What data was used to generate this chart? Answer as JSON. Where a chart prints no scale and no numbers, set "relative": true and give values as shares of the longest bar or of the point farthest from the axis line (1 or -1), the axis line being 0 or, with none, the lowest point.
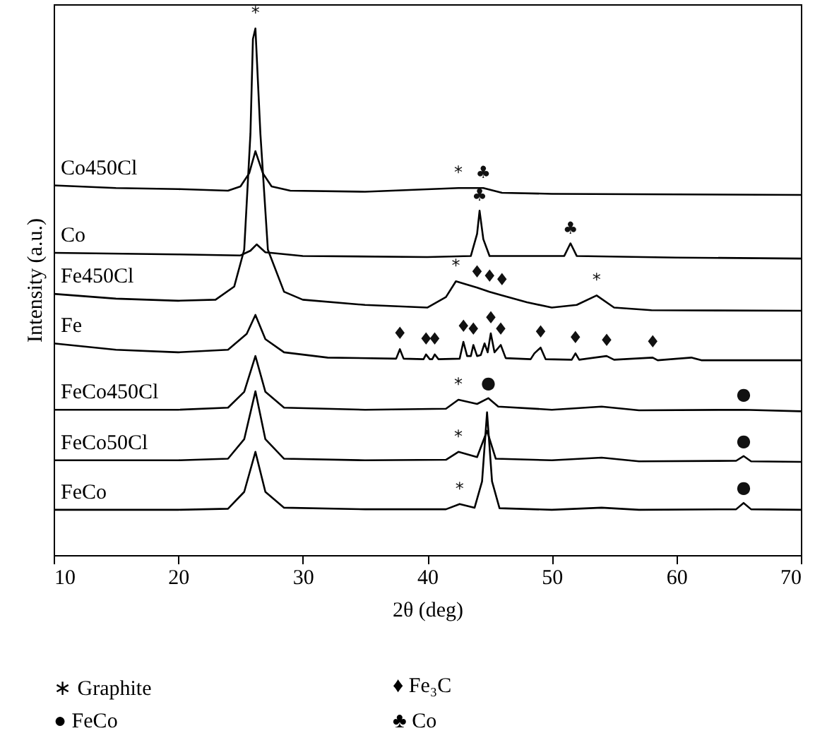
{
  "chart_data": {
    "type": "line",
    "relative": true,
    "xlabel": "2θ (deg)",
    "ylabel": "Intensity (a.u.)",
    "xlim": [
      10,
      70
    ],
    "xticks": [
      10,
      20,
      30,
      40,
      50,
      60,
      70
    ],
    "marker": "none",
    "series": [
      {
        "name": "Co450Cl",
        "color": "#000000",
        "x": [
          10,
          15,
          20,
          24,
          25,
          25.7,
          26.2,
          26.8,
          27.5,
          29,
          35,
          42.5,
          44.5,
          46,
          50,
          60,
          70
        ],
        "values": [
          0.702,
          0.697,
          0.695,
          0.692,
          0.7,
          0.725,
          0.767,
          0.725,
          0.7,
          0.692,
          0.69,
          0.697,
          0.697,
          0.688,
          0.686,
          0.685,
          0.684
        ]
      },
      {
        "name": "Co",
        "color": "#000000",
        "x": [
          10,
          20,
          25,
          25.8,
          26.3,
          27,
          30,
          40,
          43.5,
          44,
          44.2,
          44.5,
          45,
          51,
          51.5,
          52,
          60,
          70
        ],
        "values": [
          0.574,
          0.571,
          0.569,
          0.578,
          0.59,
          0.575,
          0.568,
          0.566,
          0.568,
          0.61,
          0.654,
          0.6,
          0.568,
          0.568,
          0.592,
          0.568,
          0.565,
          0.563
        ]
      },
      {
        "name": "Fe450Cl",
        "color": "#000000",
        "x": [
          10,
          15,
          20,
          23,
          24.5,
          25.3,
          25.8,
          26,
          26.2,
          26.6,
          27.2,
          28.5,
          30,
          35,
          40,
          41.5,
          42.3,
          43,
          44,
          45,
          46,
          48,
          50,
          52,
          53.6,
          55,
          58,
          70
        ],
        "values": [
          0.496,
          0.487,
          0.483,
          0.485,
          0.51,
          0.58,
          0.8,
          0.98,
          1,
          0.8,
          0.58,
          0.5,
          0.485,
          0.475,
          0.47,
          0.49,
          0.52,
          0.515,
          0.508,
          0.5,
          0.493,
          0.48,
          0.47,
          0.475,
          0.493,
          0.47,
          0.465,
          0.464
        ]
      },
      {
        "name": "Fe",
        "color": "#000000",
        "x": [
          10,
          15,
          20,
          24,
          25.5,
          26.2,
          27,
          28.5,
          32,
          37.5,
          37.8,
          38.1,
          39.7,
          39.9,
          40.2,
          40.4,
          40.6,
          40.9,
          42.6,
          42.9,
          43.2,
          43.5,
          43.7,
          44,
          44.3,
          44.6,
          44.85,
          45.1,
          45.4,
          45.9,
          46.3,
          48.3,
          48.6,
          49.1,
          49.5,
          51.6,
          51.9,
          52.2,
          54.4,
          55,
          58.1,
          58.5,
          61.2,
          62,
          70
        ],
        "values": [
          0.402,
          0.39,
          0.385,
          0.39,
          0.42,
          0.456,
          0.41,
          0.385,
          0.375,
          0.373,
          0.391,
          0.373,
          0.372,
          0.381,
          0.372,
          0.372,
          0.381,
          0.372,
          0.373,
          0.405,
          0.378,
          0.378,
          0.399,
          0.378,
          0.38,
          0.402,
          0.385,
          0.421,
          0.385,
          0.399,
          0.374,
          0.372,
          0.383,
          0.394,
          0.372,
          0.371,
          0.383,
          0.371,
          0.378,
          0.371,
          0.375,
          0.37,
          0.375,
          0.37,
          0.37
        ]
      },
      {
        "name": "FeCo450Cl",
        "color": "#000000",
        "x": [
          10,
          20,
          24,
          25.3,
          26.2,
          27,
          28.5,
          35,
          41.5,
          42.5,
          44,
          44.9,
          45.7,
          50,
          54,
          57,
          65.4,
          70
        ],
        "values": [
          0.276,
          0.276,
          0.28,
          0.31,
          0.378,
          0.31,
          0.28,
          0.276,
          0.278,
          0.295,
          0.287,
          0.298,
          0.282,
          0.276,
          0.282,
          0.275,
          0.276,
          0.273
        ]
      },
      {
        "name": "FeCo50Cl",
        "color": "#000000",
        "x": [
          10,
          20,
          24,
          25.3,
          26.2,
          27,
          28.5,
          35,
          41.5,
          42.5,
          44,
          44.8,
          45.5,
          50,
          54,
          57,
          64.8,
          65.4,
          66,
          70
        ],
        "values": [
          0.18,
          0.18,
          0.183,
          0.22,
          0.311,
          0.22,
          0.183,
          0.18,
          0.181,
          0.196,
          0.186,
          0.236,
          0.183,
          0.18,
          0.185,
          0.178,
          0.179,
          0.188,
          0.178,
          0.177
        ]
      },
      {
        "name": "FeCo",
        "color": "#000000",
        "x": [
          10,
          20,
          24,
          25.3,
          26.2,
          27,
          28.5,
          35,
          41.5,
          42.6,
          43.8,
          44.4,
          44.8,
          45.2,
          45.8,
          50,
          54,
          57,
          64.8,
          65.4,
          66,
          70
        ],
        "values": [
          0.086,
          0.086,
          0.088,
          0.12,
          0.196,
          0.12,
          0.09,
          0.087,
          0.087,
          0.097,
          0.09,
          0.14,
          0.271,
          0.14,
          0.089,
          0.086,
          0.09,
          0.086,
          0.087,
          0.099,
          0.087,
          0.086
        ]
      }
    ],
    "annotations": [
      {
        "text": "*",
        "x": 26.2,
        "y": 1
      },
      {
        "text": "*",
        "x": 42.5,
        "y": 0.697
      },
      {
        "text": "♣",
        "x": 44.5,
        "y": 0.697
      },
      {
        "text": "♣",
        "x": 44.2,
        "y": 0.654
      },
      {
        "text": "♣",
        "x": 51.5,
        "y": 0.592
      },
      {
        "text": "*",
        "x": 42.3,
        "y": 0.52
      },
      {
        "text": "♦",
        "x": 44,
        "y": 0.508
      },
      {
        "text": "♦",
        "x": 45,
        "y": 0.5
      },
      {
        "text": "♦",
        "x": 46,
        "y": 0.493
      },
      {
        "text": "*",
        "x": 53.6,
        "y": 0.493
      },
      {
        "text": "♦",
        "x": 37.8,
        "y": 0.391
      },
      {
        "text": "♦",
        "x": 39.9,
        "y": 0.381
      },
      {
        "text": "♦",
        "x": 40.6,
        "y": 0.381
      },
      {
        "text": "♦",
        "x": 42.9,
        "y": 0.405
      },
      {
        "text": "♦",
        "x": 43.7,
        "y": 0.399
      },
      {
        "text": "♦",
        "x": 45.1,
        "y": 0.421
      },
      {
        "text": "♦",
        "x": 45.9,
        "y": 0.399
      },
      {
        "text": "♦",
        "x": 49.1,
        "y": 0.394
      },
      {
        "text": "♦",
        "x": 51.9,
        "y": 0.383
      },
      {
        "text": "♦",
        "x": 54.4,
        "y": 0.378
      },
      {
        "text": "♦",
        "x": 58.1,
        "y": 0.375
      },
      {
        "text": "*",
        "x": 42.5,
        "y": 0.295
      },
      {
        "text": "●",
        "x": 44.9,
        "y": 0.298
      },
      {
        "text": "●",
        "x": 65.4,
        "y": 0.276
      },
      {
        "text": "*",
        "x": 42.5,
        "y": 0.196
      },
      {
        "text": "●",
        "x": 65.4,
        "y": 0.188
      },
      {
        "text": "*",
        "x": 42.6,
        "y": 0.097
      },
      {
        "text": "●",
        "x": 65.4,
        "y": 0.099
      },
      "∗  Graphite",
      "♦  Fe₃C",
      "●  FeCo",
      "♣  Co"
    ]
  }
}
